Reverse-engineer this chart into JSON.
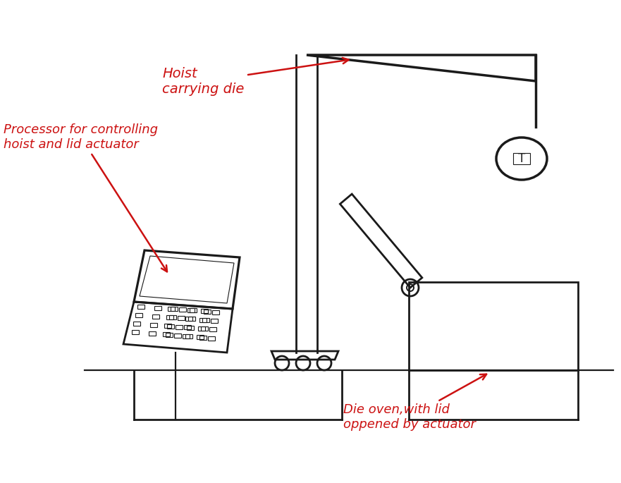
{
  "background_color": "#ffffff",
  "line_color": "#1a1a1a",
  "red_color": "#cc1111",
  "label_hoist": "Hoist\ncarrying die",
  "label_processor": "Processor for controlling\nhoist and lid actuator",
  "label_oven": "Die oven,with lid\noppened by actuator",
  "figsize": [
    8.81,
    6.85
  ],
  "dpi": 100
}
